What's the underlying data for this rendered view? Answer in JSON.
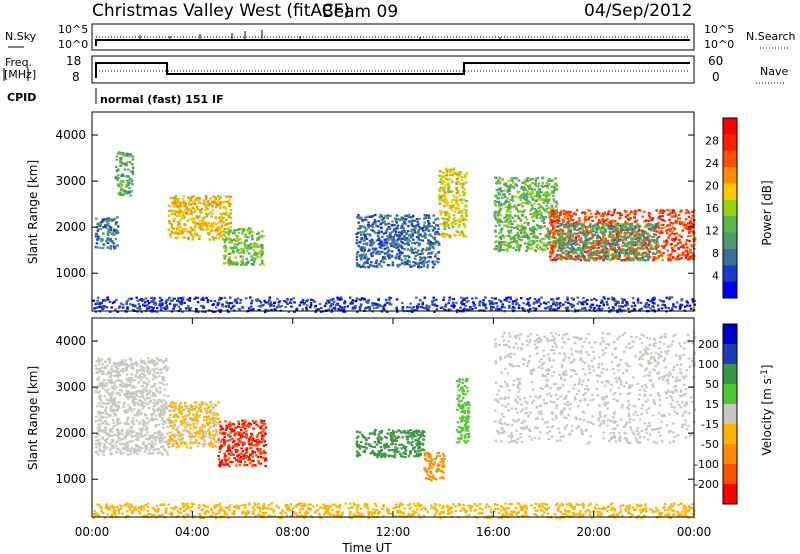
{
  "header": {
    "station": "Christmas Valley West (fitACF)",
    "beam": "Beam 09",
    "date": "04/Sep/2012"
  },
  "top_panels": {
    "nsky_label": "N.Sky",
    "nsearch_label": "N.Search",
    "nsky_ticks": [
      "10^5",
      "10^0"
    ],
    "nsearch_ticks": [
      "10^5",
      "10^0"
    ],
    "freq_label_1": "Freq.",
    "freq_label_2": "[MHz]",
    "freq_ticks": [
      "18",
      "8"
    ],
    "nave_label": "Nave",
    "nave_ticks": [
      "60",
      "0"
    ],
    "cpid_label": "CPID",
    "cpid_text": "normal (fast) 151 IF"
  },
  "chart_data": [
    {
      "type": "heatmap",
      "name": "Power",
      "ylabel": "Slant Range [km]",
      "xlabel": "",
      "ylim": [
        180,
        4500
      ],
      "yticks": [
        "4000",
        "3000",
        "2000",
        "1000"
      ],
      "colorbar": {
        "label": "Power [dB]",
        "ticks": [
          "28",
          "24",
          "20",
          "16",
          "12",
          "8",
          "4"
        ],
        "colors": [
          "#0000ff",
          "#1a3cc8",
          "#3c6e9a",
          "#4f9a6a",
          "#5ab848",
          "#9ad010",
          "#ffc800",
          "#ff8c00",
          "#ff5000",
          "#ff1e00",
          "#ff0000"
        ]
      },
      "echo_regions": [
        {
          "t0": 0.9,
          "t1": 1.6,
          "r0": 2700,
          "r1": 3650,
          "value": 14
        },
        {
          "t0": 0.1,
          "t1": 1.0,
          "r0": 1550,
          "r1": 2250,
          "value": 10
        },
        {
          "t0": 3.0,
          "t1": 5.5,
          "r0": 1750,
          "r1": 2700,
          "value": 22
        },
        {
          "t0": 5.2,
          "t1": 6.8,
          "r0": 1200,
          "r1": 2000,
          "value": 16
        },
        {
          "t0": 10.5,
          "t1": 13.8,
          "r0": 1150,
          "r1": 2300,
          "value": 9
        },
        {
          "t0": 13.8,
          "t1": 14.9,
          "r0": 1800,
          "r1": 3300,
          "value": 20
        },
        {
          "t0": 16.0,
          "t1": 18.5,
          "r0": 1500,
          "r1": 3100,
          "value": 15
        },
        {
          "t0": 18.2,
          "t1": 24.0,
          "r0": 1300,
          "r1": 2400,
          "value": 29
        },
        {
          "t0": 18.5,
          "t1": 22.5,
          "r0": 1300,
          "r1": 2100,
          "value": 13
        },
        {
          "t0": 0.0,
          "t1": 24.0,
          "r0": 180,
          "r1": 500,
          "value": 6
        }
      ]
    },
    {
      "type": "heatmap",
      "name": "Velocity",
      "ylabel": "Slant Range [km]",
      "xlabel": "Time UT",
      "ylim": [
        180,
        4500
      ],
      "xlim": [
        "00:00",
        "00:00"
      ],
      "yticks": [
        "4000",
        "3000",
        "2000",
        "1000"
      ],
      "xticks": [
        "00:00",
        "04:00",
        "08:00",
        "12:00",
        "16:00",
        "20:00",
        "00:00"
      ],
      "colorbar": {
        "label": "Velocity [m s^-1]",
        "ticks": [
          "200",
          "100",
          "50",
          "15",
          "-15",
          "-50",
          "-100",
          "-200"
        ],
        "colors": [
          "#ff0000",
          "#ff5000",
          "#ff8c00",
          "#ffb400",
          "#c8c8c0",
          "#50c832",
          "#3c9646",
          "#1e3cb4",
          "#0000c8"
        ]
      },
      "echo_regions": [
        {
          "t0": 0.1,
          "t1": 3.0,
          "r0": 1550,
          "r1": 3650,
          "value": 0
        },
        {
          "t0": 3.0,
          "t1": 5.0,
          "r0": 1700,
          "r1": 2700,
          "value": -20
        },
        {
          "t0": 5.0,
          "t1": 6.9,
          "r0": 1300,
          "r1": 2300,
          "value": -200
        },
        {
          "t0": 10.5,
          "t1": 13.2,
          "r0": 1500,
          "r1": 2100,
          "value": 70
        },
        {
          "t0": 13.2,
          "t1": 14.0,
          "r0": 1000,
          "r1": 1600,
          "value": -60
        },
        {
          "t0": 14.5,
          "t1": 15.0,
          "r0": 1800,
          "r1": 3200,
          "value": 30
        },
        {
          "t0": 16.0,
          "t1": 24.0,
          "r0": 1800,
          "r1": 4200,
          "value": 0
        },
        {
          "t0": 0.0,
          "t1": 24.0,
          "r0": 180,
          "r1": 500,
          "value": -40
        }
      ]
    }
  ]
}
